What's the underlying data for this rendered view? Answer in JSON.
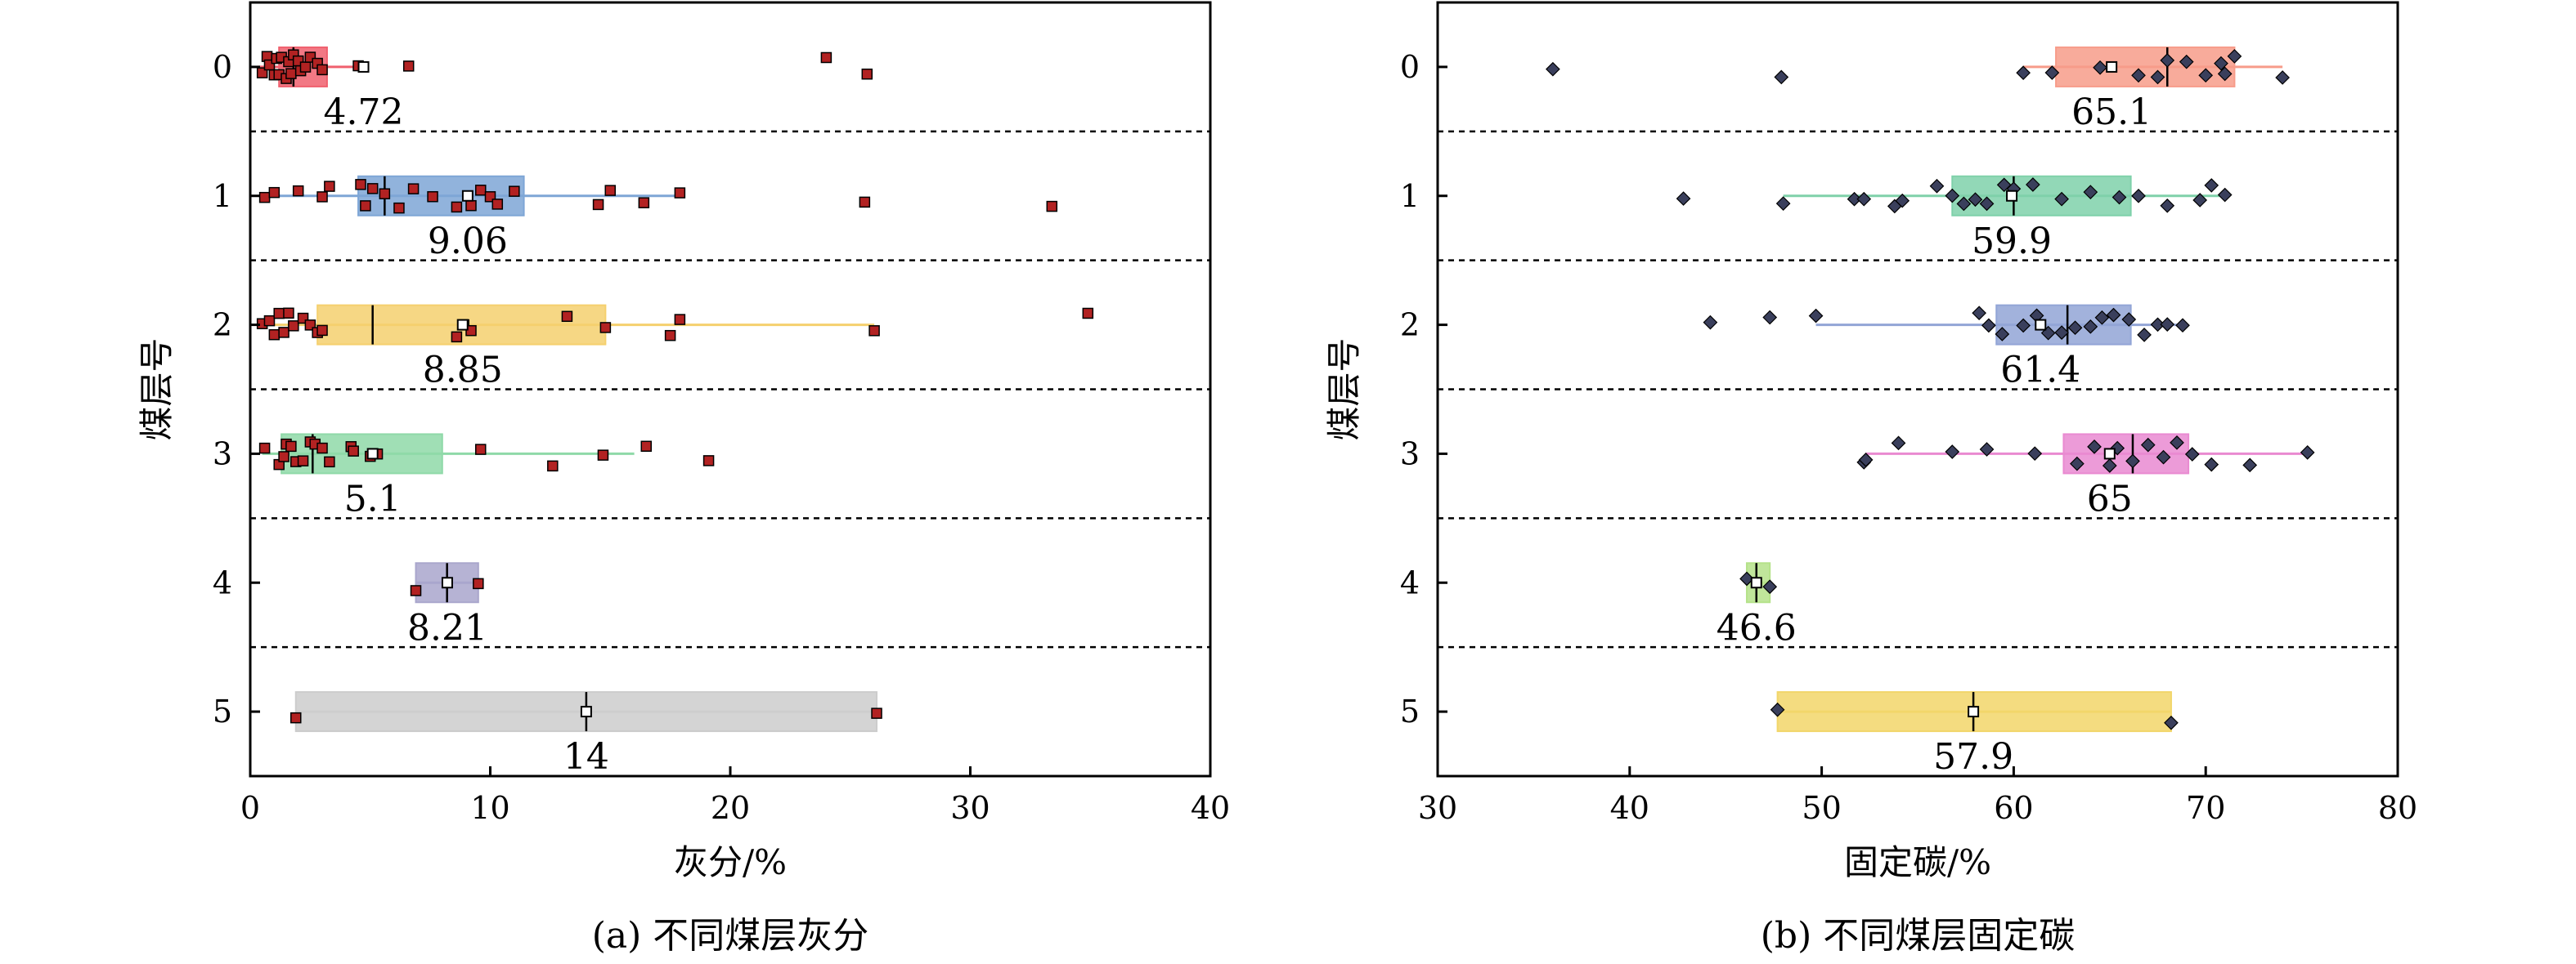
{
  "chart_data": [
    {
      "type": "box",
      "panel": "a",
      "caption": "(a) 不同煤层灰分",
      "xlabel": "灰分/%",
      "ylabel": "煤层号",
      "xlim": [
        0,
        40
      ],
      "xticks": [
        0,
        10,
        20,
        30,
        40
      ],
      "categories": [
        "0",
        "1",
        "2",
        "3",
        "4",
        "5"
      ],
      "point_color": "#b22222",
      "point_marker": "square",
      "boxes": [
        {
          "category": "0",
          "whisker_low": 0.3,
          "q1": 1.2,
          "median": 1.8,
          "q3": 3.2,
          "whisker_high": 4.3,
          "mean": 4.72,
          "mean_label": "4.72",
          "color": "#f0606e",
          "points": [
            0.5,
            0.7,
            0.8,
            1.0,
            1.1,
            1.2,
            1.3,
            1.5,
            1.6,
            1.7,
            1.8,
            2.0,
            2.1,
            2.3,
            2.5,
            2.8,
            3.0,
            4.5,
            6.6,
            24.0,
            25.7
          ]
        },
        {
          "category": "1",
          "whisker_low": 0.5,
          "q1": 4.5,
          "median": 5.6,
          "q3": 11.4,
          "whisker_high": 18.0,
          "mean": 9.06,
          "mean_label": "9.06",
          "color": "#7ea6d6",
          "points": [
            0.6,
            1.0,
            2.0,
            3.0,
            3.3,
            4.6,
            4.8,
            5.1,
            5.6,
            6.2,
            6.8,
            7.6,
            8.6,
            9.2,
            9.6,
            10.0,
            10.3,
            11.0,
            14.5,
            15.0,
            16.4,
            17.9,
            25.6,
            33.4
          ]
        },
        {
          "category": "2",
          "whisker_low": 0.5,
          "q1": 2.8,
          "median": 5.1,
          "q3": 14.8,
          "whisker_high": 26.0,
          "mean": 8.85,
          "mean_label": "8.85",
          "color": "#f5d06e",
          "points": [
            0.5,
            0.8,
            1.0,
            1.2,
            1.4,
            1.6,
            1.8,
            2.2,
            2.5,
            2.8,
            3.0,
            8.6,
            8.9,
            9.2,
            13.2,
            14.8,
            17.5,
            17.9,
            26.0,
            34.9
          ]
        },
        {
          "category": "3",
          "whisker_low": 0.5,
          "q1": 1.3,
          "median": 2.6,
          "q3": 8.0,
          "whisker_high": 16.0,
          "mean": 5.1,
          "mean_label": "5.1",
          "color": "#8fd9a8",
          "points": [
            0.6,
            1.2,
            1.4,
            1.5,
            1.7,
            1.9,
            2.2,
            2.5,
            2.7,
            3.0,
            3.3,
            4.2,
            4.3,
            5.0,
            5.3,
            9.6,
            12.6,
            14.7,
            16.5,
            19.1
          ]
        },
        {
          "category": "4",
          "whisker_low": 6.9,
          "q1": 6.9,
          "median": 8.2,
          "q3": 9.5,
          "whisker_high": 9.5,
          "mean": 8.21,
          "mean_label": "8.21",
          "color": "#a9a6cc",
          "points": [
            6.9,
            9.5
          ]
        },
        {
          "category": "5",
          "whisker_low": 1.9,
          "q1": 1.9,
          "median": 14.0,
          "q3": 26.1,
          "whisker_high": 26.1,
          "mean": 14.0,
          "mean_label": "14",
          "color": "#cccccc",
          "points": [
            1.9,
            26.1
          ]
        }
      ]
    },
    {
      "type": "box",
      "panel": "b",
      "caption": "(b) 不同煤层固定碳",
      "xlabel": "固定碳/%",
      "ylabel": "煤层号",
      "xlim": [
        30,
        80
      ],
      "xticks": [
        30,
        40,
        50,
        60,
        70,
        80
      ],
      "categories": [
        "0",
        "1",
        "2",
        "3",
        "4",
        "5"
      ],
      "point_color": "#3a3f5c",
      "point_marker": "diamond",
      "boxes": [
        {
          "category": "0",
          "whisker_low": 60.5,
          "q1": 62.2,
          "median": 68.0,
          "q3": 71.5,
          "whisker_high": 74.0,
          "mean": 65.1,
          "mean_label": "65.1",
          "color": "#f79c8a",
          "points": [
            36.0,
            47.9,
            60.5,
            62.0,
            64.5,
            66.5,
            67.5,
            68.0,
            69.0,
            70.0,
            70.8,
            71.0,
            71.5,
            74.0
          ]
        },
        {
          "category": "1",
          "whisker_low": 48.0,
          "q1": 56.8,
          "median": 60.0,
          "q3": 66.1,
          "whisker_high": 71.0,
          "mean": 59.9,
          "mean_label": "59.9",
          "color": "#7fd1aa",
          "points": [
            42.8,
            48.0,
            51.7,
            52.2,
            53.8,
            54.2,
            56.0,
            56.8,
            57.4,
            58.0,
            58.6,
            59.5,
            60.0,
            61.0,
            62.5,
            64.0,
            65.5,
            66.5,
            68.0,
            69.7,
            70.3,
            71.0
          ]
        },
        {
          "category": "2",
          "whisker_low": 49.7,
          "q1": 59.1,
          "median": 62.8,
          "q3": 66.1,
          "whisker_high": 68.8,
          "mean": 61.4,
          "mean_label": "61.4",
          "color": "#92a5d6",
          "points": [
            44.2,
            47.3,
            49.7,
            58.2,
            58.7,
            59.4,
            60.5,
            61.2,
            61.8,
            62.5,
            63.2,
            64.0,
            64.6,
            65.2,
            66.0,
            66.8,
            67.5,
            68.0,
            68.8
          ]
        },
        {
          "category": "3",
          "whisker_low": 52.3,
          "q1": 62.6,
          "median": 66.2,
          "q3": 69.1,
          "whisker_high": 75.3,
          "mean": 65.0,
          "mean_label": "65",
          "color": "#e98ad1",
          "points": [
            52.2,
            52.3,
            54.0,
            56.8,
            58.6,
            61.1,
            63.3,
            64.2,
            65.0,
            65.4,
            66.2,
            67.0,
            67.8,
            68.5,
            69.3,
            70.3,
            72.3,
            75.3
          ]
        },
        {
          "category": "4",
          "whisker_low": 46.1,
          "q1": 46.1,
          "median": 46.6,
          "q3": 47.3,
          "whisker_high": 47.3,
          "mean": 46.6,
          "mean_label": "46.6",
          "color": "#b5e28a",
          "points": [
            46.1,
            47.3
          ]
        },
        {
          "category": "5",
          "whisker_low": 47.7,
          "q1": 47.7,
          "median": 57.9,
          "q3": 68.2,
          "whisker_high": 68.2,
          "mean": 57.9,
          "mean_label": "57.9",
          "color": "#f2d66a",
          "points": [
            47.7,
            68.2
          ]
        }
      ]
    }
  ]
}
